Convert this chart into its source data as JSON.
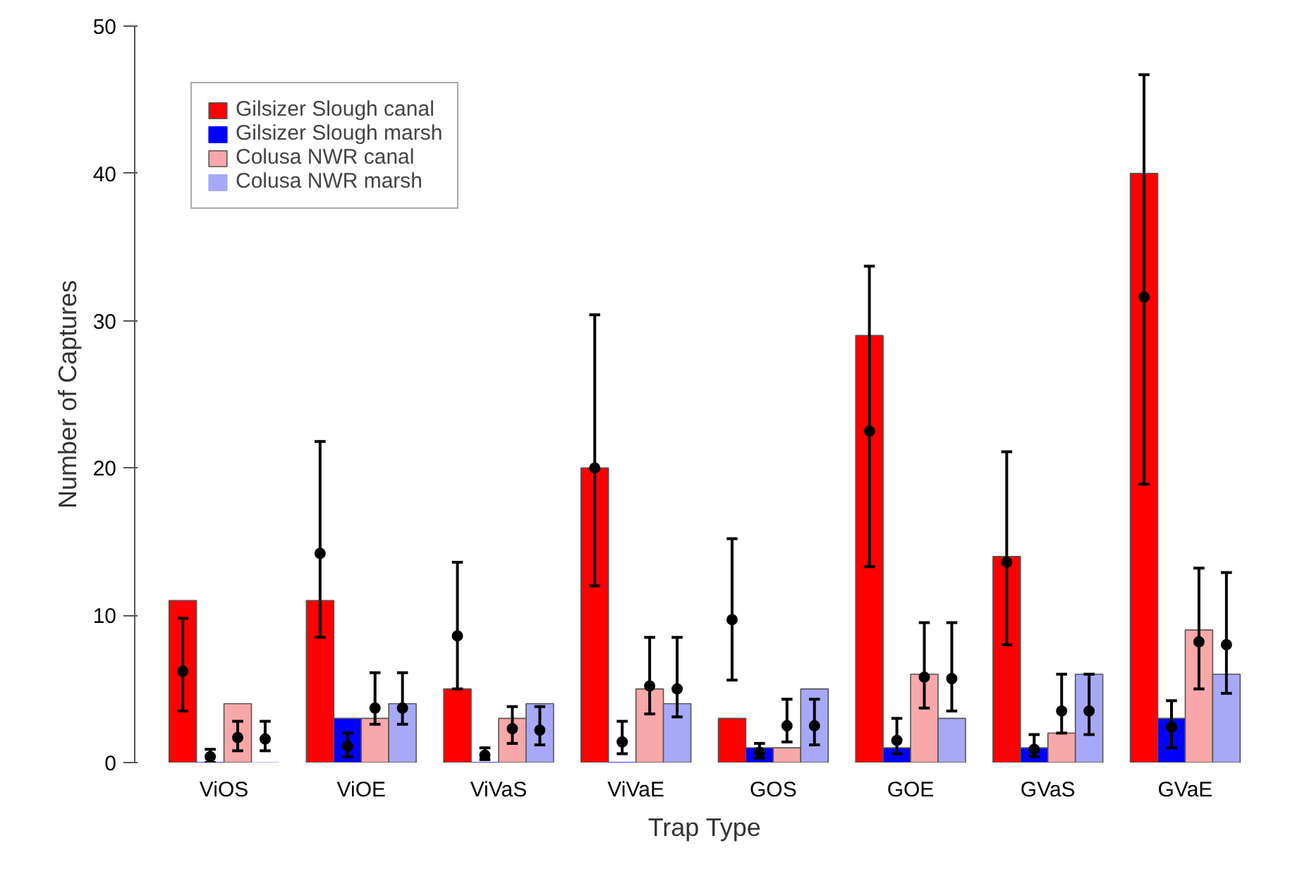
{
  "chart_data": {
    "type": "bar",
    "xlabel": "Trap Type",
    "ylabel": "Number of Captures",
    "categories": [
      "ViOS",
      "ViOE",
      "ViVaS",
      "ViVaE",
      "GOS",
      "GOE",
      "GVaS",
      "GVaE"
    ],
    "series": [
      {
        "name": "Gilsizer Slough canal",
        "color": "#ff0000",
        "values": [
          11,
          11,
          5,
          20,
          3,
          29,
          14,
          40
        ]
      },
      {
        "name": "Gilsizer Slough marsh",
        "color": "#0000ff",
        "values": [
          0,
          3,
          0,
          0,
          1,
          1,
          1,
          3
        ]
      },
      {
        "name": "Colusa NWR canal",
        "color": "#f8a8a8",
        "values": [
          4,
          3,
          3,
          5,
          1,
          6,
          2,
          9
        ]
      },
      {
        "name": "Colusa NWR marsh",
        "color": "#a8a8f8",
        "values": [
          0,
          4,
          4,
          4,
          5,
          3,
          6,
          6
        ]
      },
      {
        "type": "scatter",
        "color": "#000000",
        "values": [
          6.2,
          14.2,
          8.6,
          20.0,
          9.7,
          22.5,
          13.6,
          31.6
        ],
        "errors": [
          [
            3.5,
            9.8
          ],
          [
            8.5,
            21.8
          ],
          [
            5.0,
            13.6
          ],
          [
            12.0,
            30.4
          ],
          [
            5.6,
            15.2
          ],
          [
            13.3,
            33.7
          ],
          [
            8.0,
            21.1
          ],
          [
            18.9,
            46.7
          ]
        ]
      },
      {
        "type": "scatter",
        "color": "#000000",
        "values": [
          0.4,
          1.1,
          0.5,
          1.4,
          0.7,
          1.5,
          0.9,
          2.4
        ],
        "errors": [
          [
            0,
            0.9
          ],
          [
            0.4,
            2.0
          ],
          [
            0.2,
            1.0
          ],
          [
            0.6,
            2.8
          ],
          [
            0.3,
            1.3
          ],
          [
            0.6,
            3.0
          ],
          [
            0.4,
            1.9
          ],
          [
            1.0,
            4.2
          ]
        ]
      },
      {
        "type": "scatter",
        "color": "#000000",
        "values": [
          1.7,
          3.7,
          2.3,
          5.2,
          2.5,
          5.8,
          3.5,
          8.2
        ],
        "errors": [
          [
            0.8,
            2.8
          ],
          [
            2.6,
            6.1
          ],
          [
            1.3,
            3.8
          ],
          [
            3.3,
            8.5
          ],
          [
            1.4,
            4.3
          ],
          [
            3.7,
            9.5
          ],
          [
            2.0,
            6.0
          ],
          [
            5.0,
            13.2
          ]
        ]
      },
      {
        "type": "scatter",
        "color": "#000000",
        "values": [
          1.6,
          3.7,
          2.2,
          5.0,
          2.5,
          5.7,
          3.5,
          8.0
        ],
        "errors": [
          [
            0.8,
            2.8
          ],
          [
            2.6,
            6.1
          ],
          [
            1.2,
            3.8
          ],
          [
            3.1,
            8.5
          ],
          [
            1.2,
            4.3
          ],
          [
            3.5,
            9.5
          ],
          [
            1.9,
            6.0
          ],
          [
            4.7,
            12.9
          ]
        ]
      }
    ],
    "ylim": [
      0,
      50
    ],
    "yticks": [
      0,
      10,
      20,
      30,
      40,
      50
    ],
    "grid": false,
    "legend": "top left",
    "marker": "circle"
  }
}
